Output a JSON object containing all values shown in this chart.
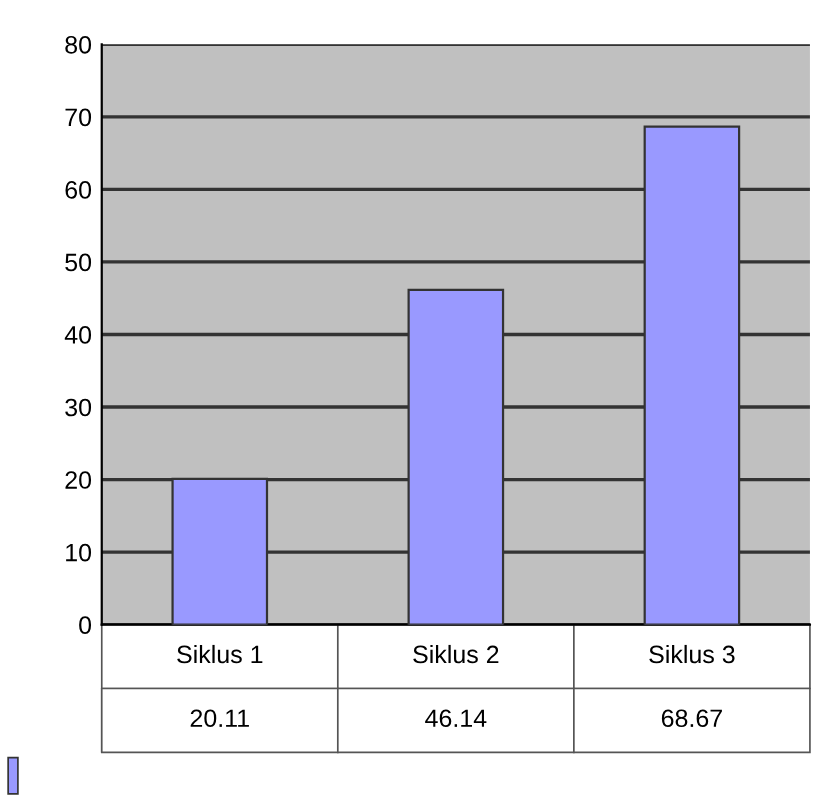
{
  "chart_data": {
    "type": "bar",
    "categories": [
      "Siklus 1",
      "Siklus 2",
      "Siklus 3"
    ],
    "values": [
      20.11,
      46.14,
      68.67
    ],
    "color": "#9999ff",
    "ylim": [
      0,
      80
    ],
    "yticks": [
      0,
      10,
      20,
      30,
      40,
      50,
      60,
      70,
      80
    ],
    "grid": "y",
    "data_labels": true
  }
}
